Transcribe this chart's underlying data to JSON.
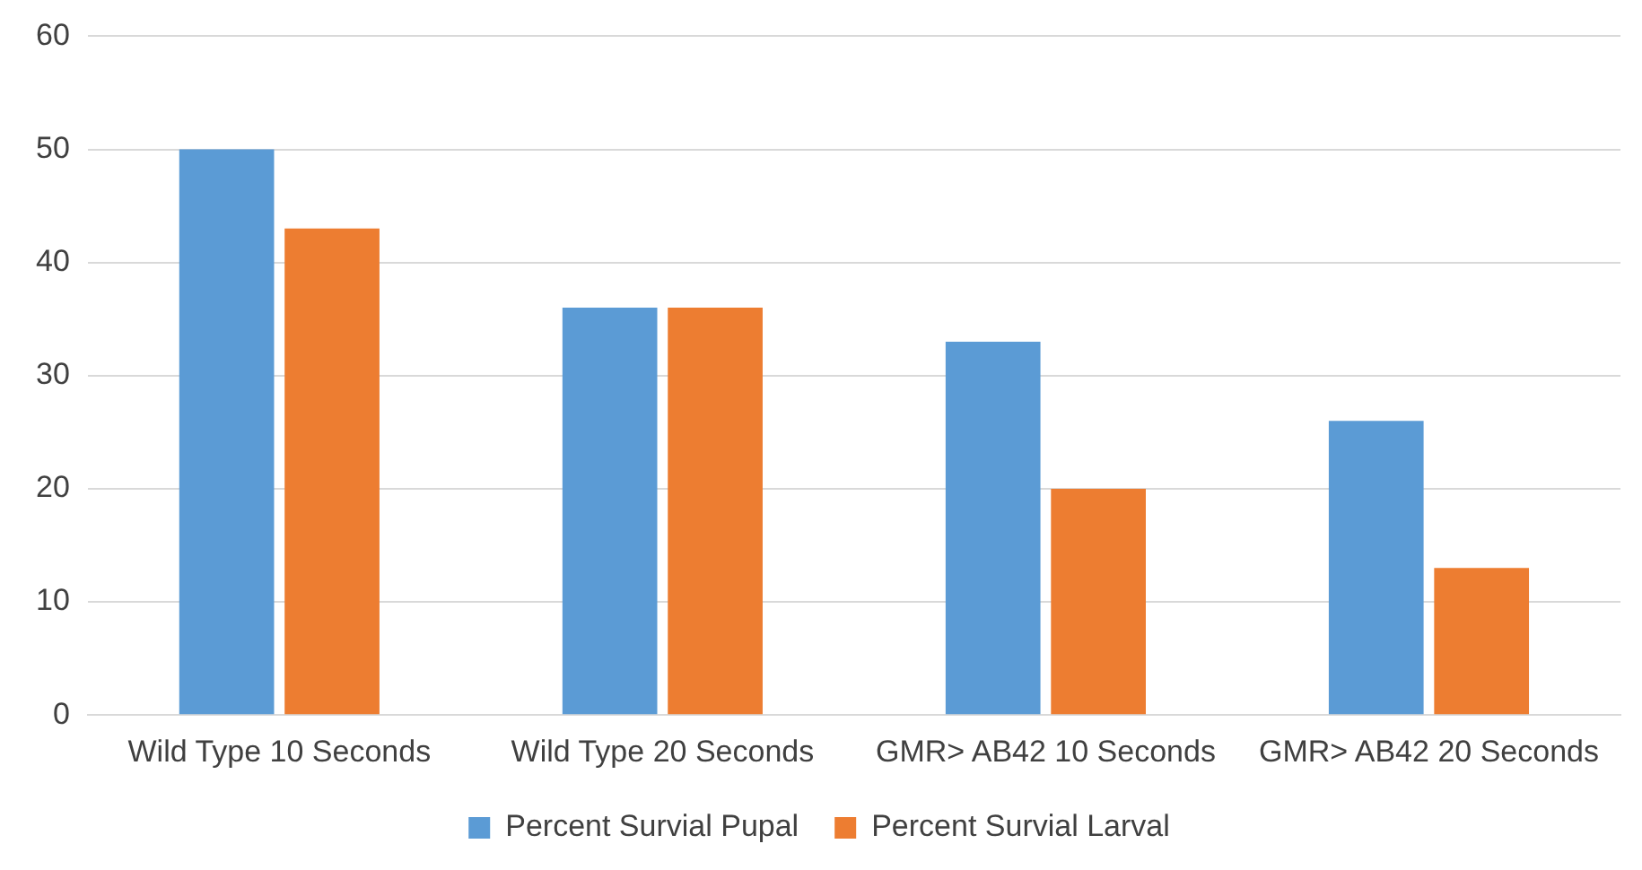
{
  "chart_data": {
    "type": "bar",
    "categories": [
      "Wild Type 10 Seconds",
      "Wild Type 20 Seconds",
      "GMR> AB42 10 Seconds",
      "GMR> AB42 20 Seconds"
    ],
    "series": [
      {
        "name": "Percent Survial Pupal",
        "color": "#5b9bd5",
        "values": [
          50,
          36,
          33,
          26
        ]
      },
      {
        "name": "Percent Survial Larval",
        "color": "#ed7d31",
        "values": [
          43,
          36,
          20,
          13
        ]
      }
    ],
    "ylim": [
      0,
      60
    ],
    "yticks": [
      0,
      10,
      20,
      30,
      40,
      50,
      60
    ],
    "grid": "y",
    "legend": "bottom"
  }
}
